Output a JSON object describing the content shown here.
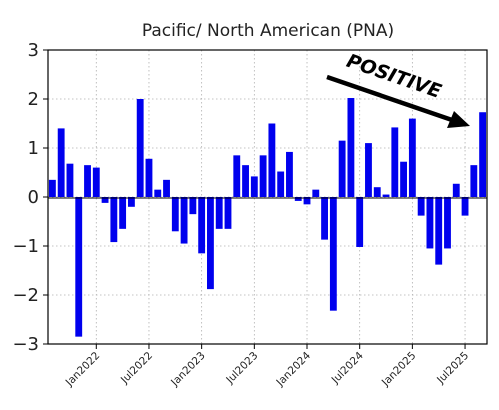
{
  "chart_data": {
    "type": "bar",
    "title": "Pacific/ North American (PNA)",
    "xlabel": "",
    "ylabel": "",
    "ylim": [
      -3,
      3
    ],
    "yticks": [
      -3,
      -2,
      -1,
      0,
      1,
      2,
      3
    ],
    "ytick_labels": [
      "−3",
      "−2",
      "−1",
      "0",
      "1",
      "2",
      "3"
    ],
    "xticks": [
      {
        "month_index": 5,
        "label": "Jan2022"
      },
      {
        "month_index": 11,
        "label": "Jul2022"
      },
      {
        "month_index": 17,
        "label": "Jan2023"
      },
      {
        "month_index": 23,
        "label": "Jul2023"
      },
      {
        "month_index": 29,
        "label": "Jan2024"
      },
      {
        "month_index": 35,
        "label": "Jul2024"
      },
      {
        "month_index": 41,
        "label": "Jan2025"
      },
      {
        "month_index": 47,
        "label": "Jul2025"
      }
    ],
    "grid": true,
    "bar_color": "#0000ee",
    "annotation": {
      "text": "POSITIVE",
      "arrow": true
    },
    "series": [
      {
        "values": [
          0.35,
          1.4,
          0.68,
          -2.85,
          0.65,
          0.6,
          -0.12,
          -0.92,
          -0.65,
          -0.2,
          2.0,
          0.78,
          0.15,
          0.35,
          -0.7,
          -0.95,
          -0.35,
          -1.15,
          -1.88,
          -0.65,
          -0.65,
          0.85,
          0.65,
          0.42,
          0.85,
          1.5,
          0.52,
          0.92,
          -0.08,
          -0.15,
          0.15,
          -0.87,
          -2.32,
          1.15,
          2.02,
          -1.02,
          1.1,
          0.2,
          0.05,
          1.42,
          0.72,
          1.6,
          -0.38,
          -1.05,
          -1.38,
          -1.05,
          0.27,
          -0.38,
          0.65,
          1.73
        ]
      }
    ]
  }
}
